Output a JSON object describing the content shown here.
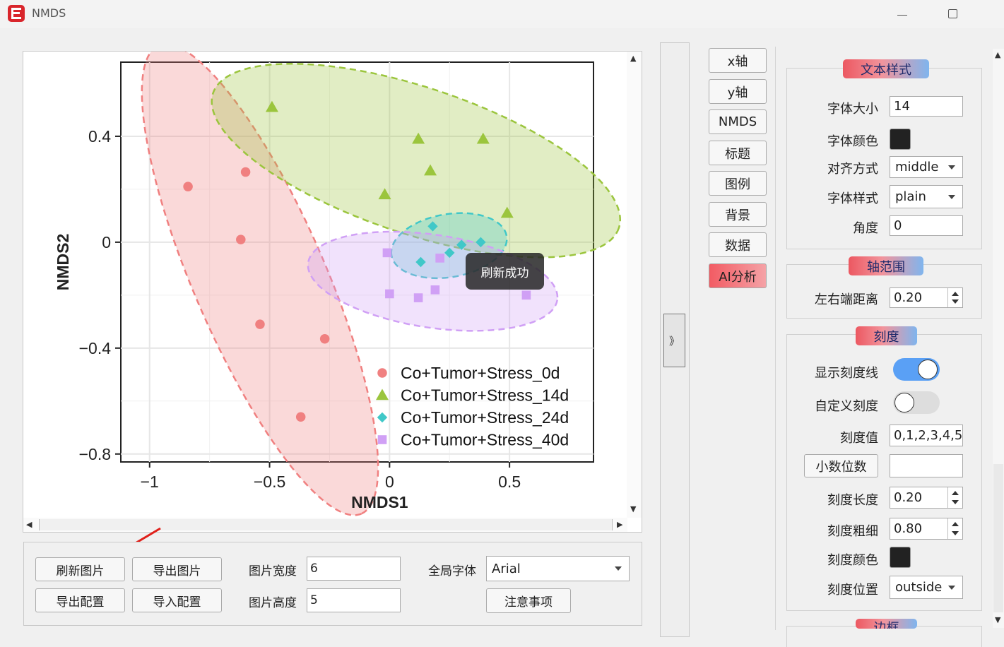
{
  "window": {
    "title": "NMDS"
  },
  "toast": "刷新成功",
  "chart_data": {
    "type": "scatter",
    "xlabel": "NMDS1",
    "ylabel": "NMDS2",
    "xlim": [
      -1.12,
      0.85
    ],
    "ylim": [
      -0.83,
      0.68
    ],
    "x_ticks": [
      -1,
      -0.5,
      0,
      0.5
    ],
    "x_tick_labels": [
      "−1",
      "−0.5",
      "0",
      "0.5"
    ],
    "y_ticks": [
      -0.8,
      -0.4,
      0,
      0.4
    ],
    "y_tick_labels": [
      "−0.8",
      "−0.4",
      "0",
      "0.4"
    ],
    "grid": true,
    "legend_position": "bottom-right",
    "ellipses": "dashed 95% confidence ellipse per series",
    "series": [
      {
        "name": "Co+Tumor+Stress_0d",
        "marker": "circle",
        "color": "#f08080",
        "points": [
          [
            -0.84,
            0.21
          ],
          [
            -0.6,
            0.265
          ],
          [
            -0.62,
            0.01
          ],
          [
            -0.54,
            -0.31
          ],
          [
            -0.27,
            -0.365
          ],
          [
            -0.37,
            -0.66
          ]
        ]
      },
      {
        "name": "Co+Tumor+Stress_14d",
        "marker": "triangle",
        "color": "#9bc53d",
        "points": [
          [
            -0.49,
            0.51
          ],
          [
            0.12,
            0.39
          ],
          [
            0.39,
            0.39
          ],
          [
            0.17,
            0.27
          ],
          [
            -0.02,
            0.18
          ],
          [
            0.49,
            0.11
          ]
        ]
      },
      {
        "name": "Co+Tumor+Stress_24d",
        "marker": "diamond",
        "color": "#40c8c8",
        "points": [
          [
            0.18,
            0.06
          ],
          [
            0.38,
            0.0
          ],
          [
            0.3,
            -0.01
          ],
          [
            0.25,
            -0.04
          ],
          [
            0.13,
            -0.075
          ]
        ]
      },
      {
        "name": "Co+Tumor+Stress_40d",
        "marker": "square",
        "color": "#d0a0f5",
        "points": [
          [
            -0.01,
            -0.04
          ],
          [
            0.21,
            -0.06
          ],
          [
            0.0,
            -0.195
          ],
          [
            0.12,
            -0.21
          ],
          [
            0.19,
            -0.18
          ],
          [
            0.57,
            -0.2
          ]
        ]
      }
    ]
  },
  "bottom": {
    "refresh": "刷新图片",
    "export_image": "导出图片",
    "export_config": "导出配置",
    "import_config": "导入配置",
    "width_label": "图片宽度",
    "width_value": "6",
    "height_label": "图片高度",
    "height_value": "5",
    "font_label": "全局字体",
    "font_value": "Arial",
    "notes": "注意事项"
  },
  "nav": [
    "x轴",
    "y轴",
    "NMDS",
    "标题",
    "图例",
    "背景",
    "数据",
    "AI分析"
  ],
  "props": {
    "text_style": {
      "title": "文本样式",
      "font_size_label": "字体大小",
      "font_size": "14",
      "font_color_label": "字体颜色",
      "font_color": "#222222",
      "align_label": "对齐方式",
      "align": "middle",
      "style_label": "字体样式",
      "style": "plain",
      "angle_label": "角度",
      "angle": "0"
    },
    "axis_range": {
      "title": "轴范围",
      "margin_label": "左右端距离",
      "margin": "0.20"
    },
    "ticks": {
      "title": "刻度",
      "show_label": "显示刻度线",
      "show": true,
      "custom_label": "自定义刻度",
      "custom": false,
      "values_label": "刻度值",
      "values": "0,1,2,3,4,5",
      "decimals_button": "小数位数",
      "decimals": "",
      "length_label": "刻度长度",
      "length": "0.20",
      "width_label": "刻度粗细",
      "width": "0.80",
      "color_label": "刻度颜色",
      "color": "#222222",
      "position_label": "刻度位置",
      "position": "outside"
    },
    "border_title": "边框"
  }
}
